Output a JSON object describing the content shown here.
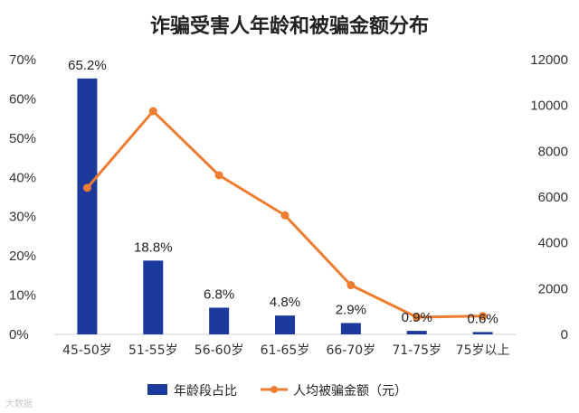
{
  "chart_data": {
    "type": "bar+line",
    "title": "诈骗受害人年龄和被骗金额分布",
    "categories": [
      "45-50岁",
      "51-55岁",
      "56-60岁",
      "61-65岁",
      "66-70岁",
      "71-75岁",
      "75岁以上"
    ],
    "series": [
      {
        "name": "年龄段占比",
        "type": "bar",
        "axis": "left",
        "values": [
          65.2,
          18.8,
          6.8,
          4.8,
          2.9,
          0.9,
          0.6
        ],
        "labels": [
          "65.2%",
          "18.8%",
          "6.8%",
          "4.8%",
          "2.9%",
          "0.9%",
          "0.6%"
        ],
        "color": "#1b3a9c"
      },
      {
        "name": "人均被骗金额（元）",
        "type": "line",
        "axis": "right",
        "values": [
          6400,
          9750,
          6950,
          5200,
          2150,
          750,
          800
        ],
        "color": "#ed7d31"
      }
    ],
    "y_left": {
      "ylim": [
        0,
        70
      ],
      "ticks": [
        "0%",
        "10%",
        "20%",
        "30%",
        "40%",
        "50%",
        "60%",
        "70%"
      ]
    },
    "y_right": {
      "ylim": [
        0,
        12000
      ],
      "ticks": [
        "0",
        "2000",
        "4000",
        "6000",
        "8000",
        "10000",
        "12000"
      ]
    },
    "legend": "bottom",
    "grid": false
  },
  "watermark": "大数据"
}
